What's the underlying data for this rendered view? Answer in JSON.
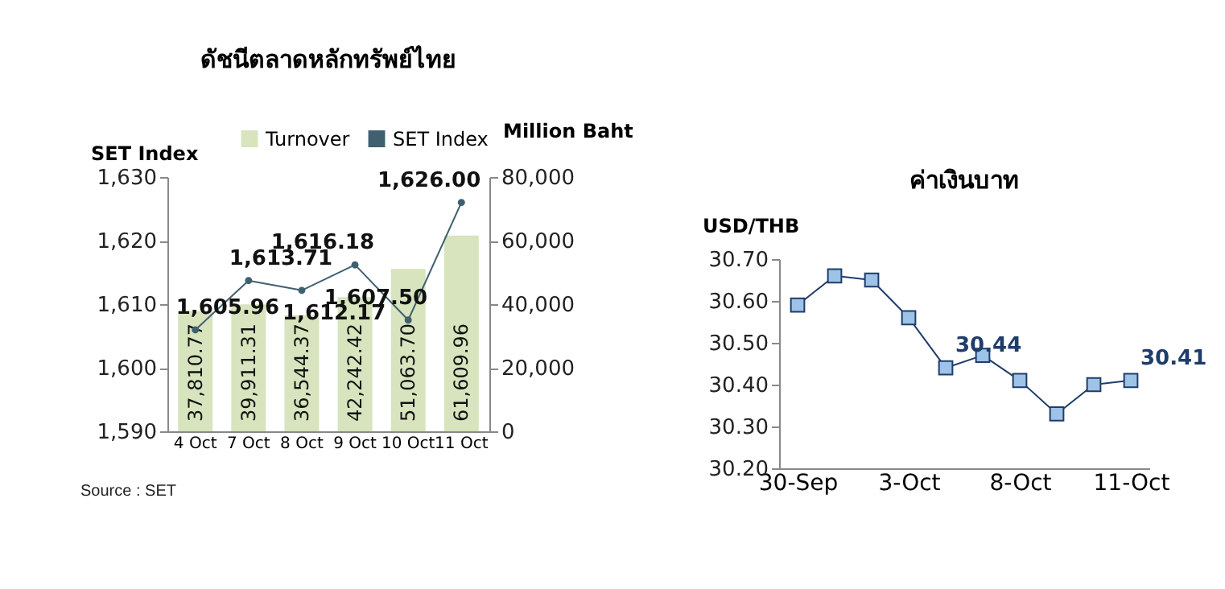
{
  "chart_data": [
    {
      "type": "bar",
      "title": "ดัชนีตลาดหลักทรัพย์ไทย",
      "ylabel": "SET Index",
      "y2label": "Million Baht",
      "categories": [
        "4 Oct",
        "7 Oct",
        "8 Oct",
        "9 Oct",
        "10 Oct",
        "11 Oct"
      ],
      "series": [
        {
          "name": "Turnover",
          "axis": "y2",
          "color": "#d7e4bd",
          "values": [
            37810.77,
            39911.31,
            36544.37,
            42242.42,
            51063.7,
            61609.96
          ],
          "value_labels": [
            "37,810.77",
            "39,911.31",
            "36,544.37",
            "42,242.42",
            "51,063.70",
            "61,609.96"
          ]
        },
        {
          "name": "SET Index",
          "type": "line",
          "color": "#3f6070",
          "values": [
            1605.96,
            1613.71,
            1612.17,
            1616.18,
            1607.5,
            1626.0
          ],
          "value_labels": [
            "1,605.96",
            "1,613.71",
            "1,612.17",
            "1,616.18",
            "1,607.50",
            "1,626.00"
          ]
        }
      ],
      "ylim": [
        1590,
        1630
      ],
      "yticks": [
        {
          "value": 1590,
          "label": "1,590"
        },
        {
          "value": 1600,
          "label": "1,600"
        },
        {
          "value": 1610,
          "label": "1,610"
        },
        {
          "value": 1620,
          "label": "1,620"
        },
        {
          "value": 1630,
          "label": "1,630"
        }
      ],
      "y2lim": [
        0,
        80000
      ],
      "y2ticks": [
        0,
        {
          "value": 20000,
          "label": "20,000"
        },
        {
          "value": 40000,
          "label": "40,000"
        },
        {
          "value": 60000,
          "label": "60,000"
        },
        {
          "value": 80000,
          "label": "80,000"
        }
      ],
      "legend": "top",
      "marker": "circle",
      "grid": false,
      "annotations": [
        "Source : SET"
      ]
    },
    {
      "type": "line",
      "title": "ค่าเงินบาท",
      "ylabel": "USD/THB",
      "categories": [
        "30-Sep",
        null,
        null,
        "3-Oct",
        null,
        null,
        "8-Oct",
        null,
        null,
        "11-Oct"
      ],
      "series": [
        {
          "color": "#1f3d6b",
          "values": [
            30.59,
            30.66,
            30.65,
            30.56,
            30.44,
            30.47,
            30.41,
            30.33,
            30.4,
            30.41
          ],
          "value_labels": [
            null,
            null,
            null,
            null,
            "30.44",
            null,
            null,
            null,
            null,
            "30.41"
          ]
        }
      ],
      "ylim": [
        30.2,
        30.7
      ],
      "yticks": [
        {
          "value": 30.2,
          "label": "30.20"
        },
        {
          "value": 30.3,
          "label": "30.30"
        },
        {
          "value": 30.4,
          "label": "30.40"
        },
        {
          "value": 30.5,
          "label": "30.50"
        },
        {
          "value": 30.6,
          "label": "30.60"
        },
        {
          "value": 30.7,
          "label": "30.70"
        }
      ],
      "marker": "square",
      "grid": false
    }
  ]
}
